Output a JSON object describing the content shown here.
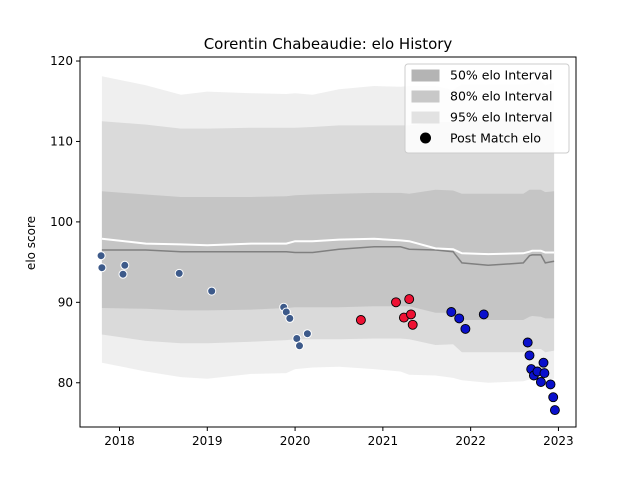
{
  "chart_data": {
    "type": "scatter",
    "title": "Corentin Chabeaudie: elo History",
    "xlabel": "",
    "ylabel": "elo score",
    "xlim": [
      2017.55,
      2023.2
    ],
    "ylim": [
      74.5,
      120.5
    ],
    "xticks": [
      2018,
      2019,
      2020,
      2021,
      2022,
      2023
    ],
    "xtick_labels": [
      "2018",
      "2019",
      "2020",
      "2021",
      "2022",
      "2023"
    ],
    "yticks": [
      80,
      90,
      100,
      110,
      120
    ],
    "ytick_labels": [
      "80",
      "90",
      "100",
      "110",
      "120"
    ],
    "grid": false,
    "legend_position": "top-right",
    "legend": [
      {
        "label": "50% elo Interval",
        "kind": "band",
        "color": "#b4b4b4"
      },
      {
        "label": "80% elo Interval",
        "kind": "band",
        "color": "#c8c8c8"
      },
      {
        "label": "95% elo Interval",
        "kind": "band",
        "color": "#e2e2e2"
      },
      {
        "label": "Post Match elo",
        "kind": "marker",
        "color": "#000000"
      }
    ],
    "bands": {
      "x": [
        2017.8,
        2018.3,
        2018.7,
        2019.0,
        2019.5,
        2019.9,
        2020.0,
        2020.2,
        2020.5,
        2020.9,
        2021.2,
        2021.3,
        2021.6,
        2021.8,
        2021.9,
        2022.2,
        2022.6,
        2022.67,
        2022.7,
        2022.8,
        2022.85,
        2022.95
      ],
      "mean": [
        96.5,
        96.5,
        96.3,
        96.3,
        96.3,
        96.3,
        96.2,
        96.2,
        96.6,
        96.9,
        96.9,
        96.6,
        96.5,
        96.3,
        94.9,
        94.6,
        94.9,
        95.8,
        95.9,
        95.9,
        94.9,
        95.1
      ],
      "white_line": [
        97.9,
        97.3,
        97.2,
        97.1,
        97.3,
        97.3,
        97.6,
        97.6,
        97.8,
        97.9,
        97.7,
        97.6,
        96.7,
        96.6,
        96.1,
        96.0,
        96.1,
        96.3,
        96.4,
        96.4,
        96.2,
        96.2
      ],
      "p50": [
        [
          89.3,
          103.8
        ],
        [
          89.2,
          103.4
        ],
        [
          89.0,
          103.1
        ],
        [
          89.0,
          103.1
        ],
        [
          89.1,
          103.1
        ],
        [
          89.3,
          103.2
        ],
        [
          89.4,
          103.3
        ],
        [
          89.4,
          103.4
        ],
        [
          89.4,
          103.5
        ],
        [
          89.5,
          103.6
        ],
        [
          89.5,
          103.6
        ],
        [
          89.5,
          103.5
        ],
        [
          88.7,
          104.0
        ],
        [
          88.7,
          103.9
        ],
        [
          87.8,
          103.5
        ],
        [
          87.8,
          103.5
        ],
        [
          87.8,
          103.5
        ],
        [
          88.2,
          104.0
        ],
        [
          88.3,
          104.0
        ],
        [
          88.2,
          104.0
        ],
        [
          88.0,
          103.7
        ],
        [
          88.0,
          103.8
        ]
      ],
      "p80": [
        [
          86.0,
          112.5
        ],
        [
          85.2,
          112.1
        ],
        [
          84.9,
          111.6
        ],
        [
          84.9,
          111.6
        ],
        [
          85.1,
          111.7
        ],
        [
          85.3,
          111.7
        ],
        [
          85.4,
          111.7
        ],
        [
          85.4,
          111.8
        ],
        [
          85.4,
          112.0
        ],
        [
          85.5,
          112.0
        ],
        [
          85.5,
          112.0
        ],
        [
          85.4,
          112.0
        ],
        [
          84.7,
          112.4
        ],
        [
          84.8,
          112.4
        ],
        [
          83.8,
          112.7
        ],
        [
          83.8,
          112.7
        ],
        [
          83.8,
          112.8
        ],
        [
          84.1,
          112.9
        ],
        [
          84.2,
          113.2
        ],
        [
          84.2,
          113.2
        ],
        [
          83.8,
          112.6
        ],
        [
          84.0,
          112.6
        ]
      ],
      "p95": [
        [
          82.5,
          118.1
        ],
        [
          81.4,
          117.0
        ],
        [
          80.7,
          115.8
        ],
        [
          80.5,
          116.2
        ],
        [
          81.1,
          116.0
        ],
        [
          81.2,
          115.9
        ],
        [
          81.7,
          116.0
        ],
        [
          81.9,
          115.8
        ],
        [
          82.0,
          116.5
        ],
        [
          81.7,
          116.9
        ],
        [
          81.4,
          116.8
        ],
        [
          81.0,
          116.9
        ],
        [
          80.9,
          116.9
        ],
        [
          80.6,
          116.4
        ],
        [
          80.3,
          117.1
        ],
        [
          80.0,
          117.1
        ],
        [
          80.2,
          117.1
        ],
        [
          80.4,
          117.2
        ],
        [
          80.3,
          117.6
        ],
        [
          80.6,
          117.6
        ],
        [
          80.4,
          117.0
        ],
        [
          80.5,
          117.3
        ]
      ]
    },
    "points": [
      {
        "x": 2017.79,
        "y": 95.8,
        "color": "#3d5a8a"
      },
      {
        "x": 2017.8,
        "y": 94.3,
        "color": "#3d5a8a"
      },
      {
        "x": 2018.04,
        "y": 93.5,
        "color": "#3d5a8a"
      },
      {
        "x": 2018.06,
        "y": 94.6,
        "color": "#3d5a8a"
      },
      {
        "x": 2018.68,
        "y": 93.6,
        "color": "#3d5a8a"
      },
      {
        "x": 2019.05,
        "y": 91.4,
        "color": "#3d5a8a"
      },
      {
        "x": 2019.87,
        "y": 89.4,
        "color": "#3d5a8a"
      },
      {
        "x": 2019.9,
        "y": 88.8,
        "color": "#3d5a8a"
      },
      {
        "x": 2019.94,
        "y": 88.0,
        "color": "#3d5a8a"
      },
      {
        "x": 2020.02,
        "y": 85.5,
        "color": "#3d5a8a"
      },
      {
        "x": 2020.05,
        "y": 84.6,
        "color": "#3d5a8a"
      },
      {
        "x": 2020.14,
        "y": 86.1,
        "color": "#3d5a8a"
      },
      {
        "x": 2020.75,
        "y": 87.8,
        "color": "#ee1133"
      },
      {
        "x": 2021.15,
        "y": 90.0,
        "color": "#ee1133"
      },
      {
        "x": 2021.24,
        "y": 88.1,
        "color": "#ee1133"
      },
      {
        "x": 2021.3,
        "y": 90.4,
        "color": "#ee1133"
      },
      {
        "x": 2021.32,
        "y": 88.5,
        "color": "#ee1133"
      },
      {
        "x": 2021.34,
        "y": 87.2,
        "color": "#ee1133"
      },
      {
        "x": 2021.78,
        "y": 88.8,
        "color": "#0a10cc"
      },
      {
        "x": 2021.87,
        "y": 88.0,
        "color": "#0a10cc"
      },
      {
        "x": 2021.94,
        "y": 86.7,
        "color": "#0a10cc"
      },
      {
        "x": 2022.15,
        "y": 88.5,
        "color": "#0a10cc"
      },
      {
        "x": 2022.65,
        "y": 85.0,
        "color": "#0a10cc"
      },
      {
        "x": 2022.67,
        "y": 83.4,
        "color": "#0a10cc"
      },
      {
        "x": 2022.69,
        "y": 81.7,
        "color": "#0a10cc"
      },
      {
        "x": 2022.72,
        "y": 80.9,
        "color": "#0a10cc"
      },
      {
        "x": 2022.76,
        "y": 81.4,
        "color": "#0a10cc"
      },
      {
        "x": 2022.8,
        "y": 80.1,
        "color": "#0a10cc"
      },
      {
        "x": 2022.83,
        "y": 82.5,
        "color": "#0a10cc"
      },
      {
        "x": 2022.84,
        "y": 81.2,
        "color": "#0a10cc"
      },
      {
        "x": 2022.91,
        "y": 79.8,
        "color": "#0a10cc"
      },
      {
        "x": 2022.94,
        "y": 78.2,
        "color": "#0a10cc"
      },
      {
        "x": 2022.96,
        "y": 76.6,
        "color": "#0a10cc"
      }
    ]
  }
}
